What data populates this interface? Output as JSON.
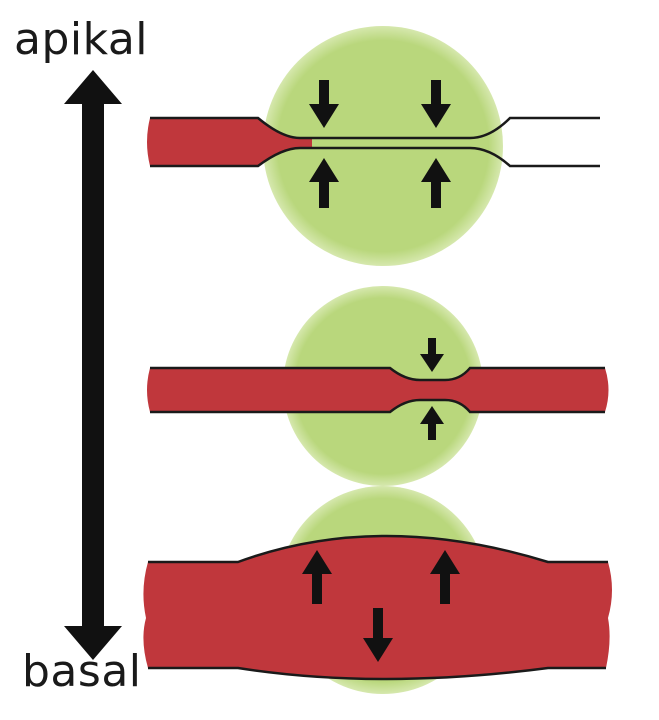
{
  "labels": {
    "top": "apikal",
    "bottom": "basal"
  },
  "colors": {
    "cell_green": "#b9d77c",
    "vessel_red": "#c0373c",
    "outline": "#1a1a1a",
    "arrow": "#111111"
  }
}
